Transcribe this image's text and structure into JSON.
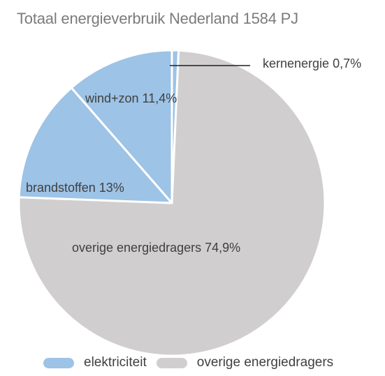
{
  "chart_data": {
    "type": "pie",
    "title": "Totaal energieverbruik Nederland 1584 PJ",
    "start_angle_deg": 0,
    "direction": "clockwise",
    "slices": [
      {
        "label": "kernenergie 0,7%",
        "value": 0.7,
        "group": "elektriciteit"
      },
      {
        "label": "overige energiedragers 74,9%",
        "value": 74.9,
        "group": "overige energiedragers"
      },
      {
        "label": "brandstoffen 13%",
        "value": 13.0,
        "group": "elektriciteit"
      },
      {
        "label": "wind+zon 11,4%",
        "value": 11.4,
        "group": "elektriciteit"
      }
    ],
    "legend": [
      {
        "label": "elektriciteit",
        "color": "#9dc3e6"
      },
      {
        "label": "overige energiedragers",
        "color": "#d0cece"
      }
    ],
    "legend_position": "bottom"
  }
}
